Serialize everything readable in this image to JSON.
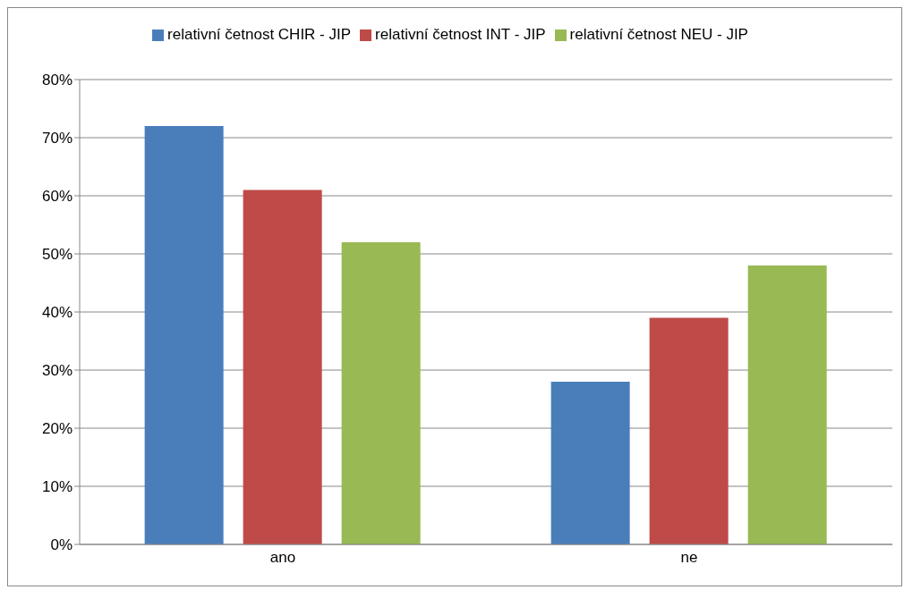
{
  "chart_data": {
    "type": "bar",
    "categories": [
      "ano",
      "ne"
    ],
    "series": [
      {
        "name": "relativní četnost CHIR - JIP",
        "color": "#4a7ebb",
        "values": [
          72,
          28
        ]
      },
      {
        "name": "relativní četnost INT - JIP",
        "color": "#be4b48",
        "values": [
          61,
          39
        ]
      },
      {
        "name": "relativní četnost NEU - JIP",
        "color": "#98b954",
        "values": [
          52,
          48
        ]
      }
    ],
    "ylim": [
      0,
      80
    ],
    "yticks": [
      {
        "value": 0,
        "label": "0%"
      },
      {
        "value": 10,
        "label": "10%"
      },
      {
        "value": 20,
        "label": "20%"
      },
      {
        "value": 30,
        "label": "30%"
      },
      {
        "value": 40,
        "label": "40%"
      },
      {
        "value": 50,
        "label": "50%"
      },
      {
        "value": 60,
        "label": "60%"
      },
      {
        "value": 70,
        "label": "70%"
      },
      {
        "value": 80,
        "label": "80%"
      }
    ],
    "grid": "y",
    "legend": "top"
  }
}
